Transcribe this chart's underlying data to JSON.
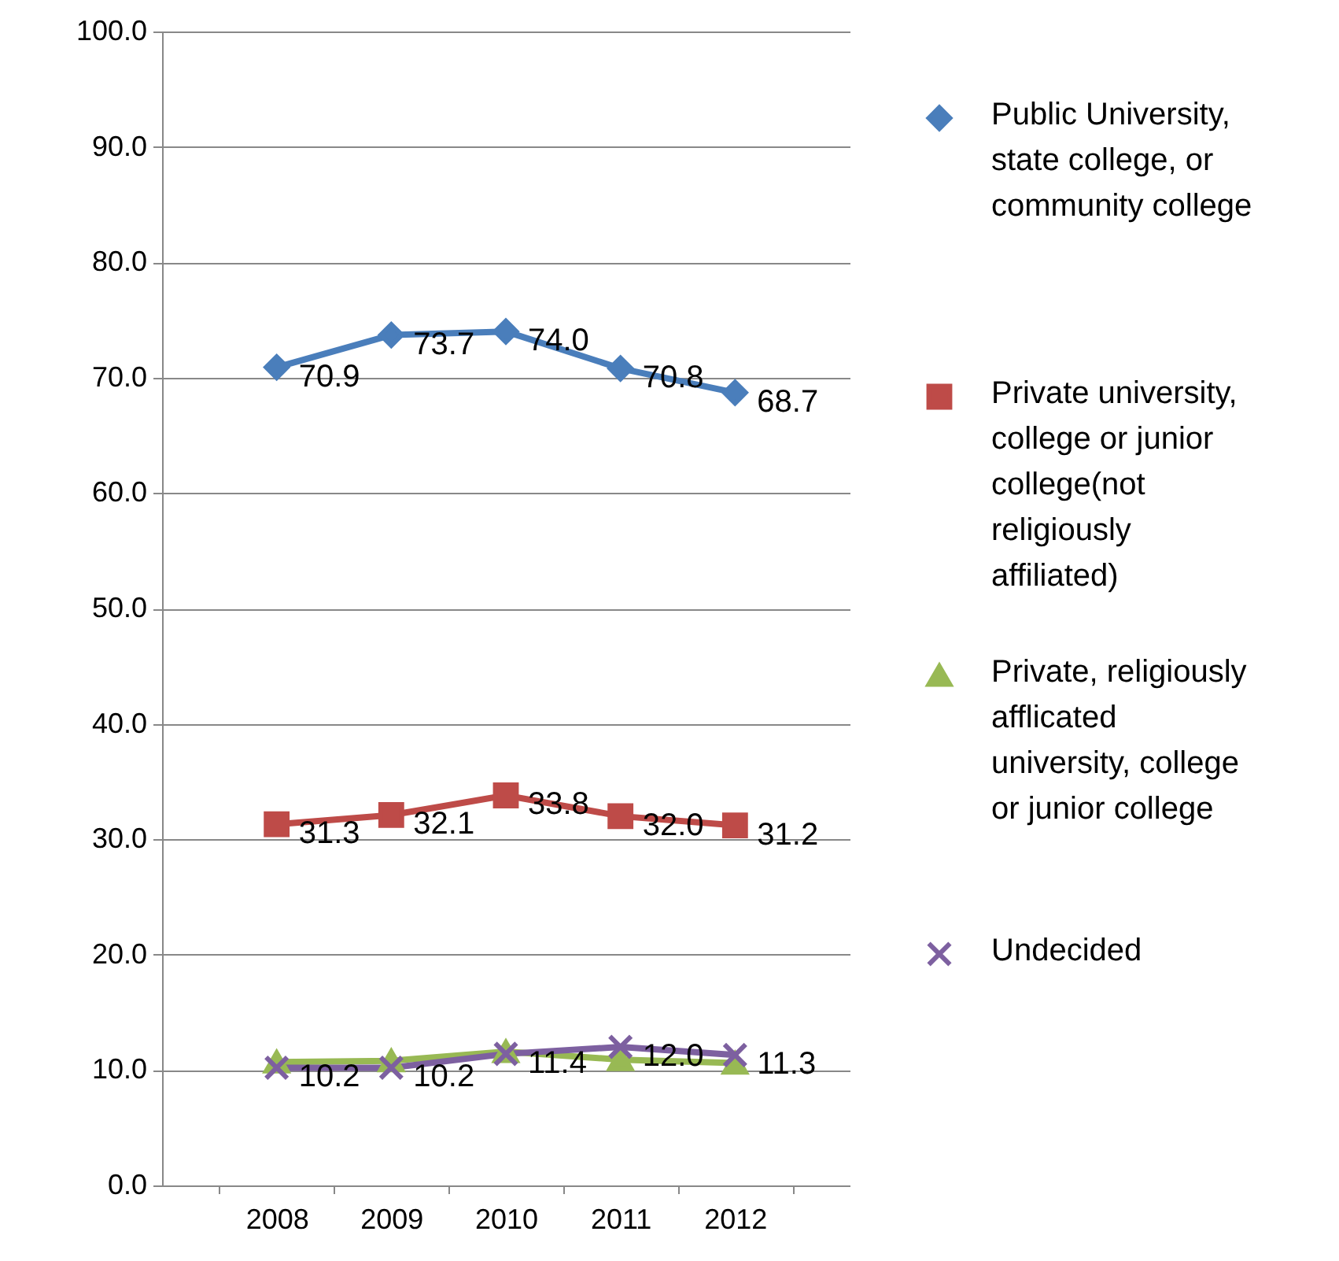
{
  "chart_data": {
    "type": "line",
    "categories": [
      "2008",
      "2009",
      "2010",
      "2011",
      "2012"
    ],
    "series": [
      {
        "name": "Public University, state college, or community college",
        "color": "#4a7ebb",
        "marker": "diamond",
        "values": [
          70.9,
          73.7,
          74.0,
          70.8,
          68.7
        ],
        "value_labels": [
          "70.9",
          "73.7",
          "74.0",
          "70.8",
          "68.7"
        ]
      },
      {
        "name": "Private university, college or junior college(not religiously affiliated)",
        "color": "#be4b48",
        "marker": "square",
        "values": [
          31.3,
          32.1,
          33.8,
          32.0,
          31.2
        ],
        "value_labels": [
          "31.3",
          "32.1",
          "33.8",
          "32.0",
          "31.2"
        ]
      },
      {
        "name": "Private, religiously afflicated university, college or junior college",
        "color": "#98b954",
        "marker": "triangle",
        "values": [
          10.7,
          10.8,
          11.6,
          10.9,
          10.6
        ]
      },
      {
        "name": "Undecided",
        "color": "#7d60a0",
        "marker": "cross",
        "values": [
          10.2,
          10.2,
          11.4,
          12.0,
          11.3
        ],
        "value_labels": [
          "10.2",
          "10.2",
          "11.4",
          "12.0",
          "11.3"
        ]
      }
    ],
    "ylim": [
      0,
      100
    ],
    "yticks": [
      {
        "value": 0,
        "label": "0.0"
      },
      {
        "value": 10,
        "label": "10.0"
      },
      {
        "value": 20,
        "label": "20.0"
      },
      {
        "value": 30,
        "label": "30.0"
      },
      {
        "value": 40,
        "label": "40.0"
      },
      {
        "value": 50,
        "label": "50.0"
      },
      {
        "value": 60,
        "label": "60.0"
      },
      {
        "value": 70,
        "label": "70.0"
      },
      {
        "value": 80,
        "label": "80.0"
      },
      {
        "value": 90,
        "label": "90.0"
      },
      {
        "value": 100,
        "label": "100.0"
      }
    ],
    "grid": "y",
    "legend": "right"
  }
}
